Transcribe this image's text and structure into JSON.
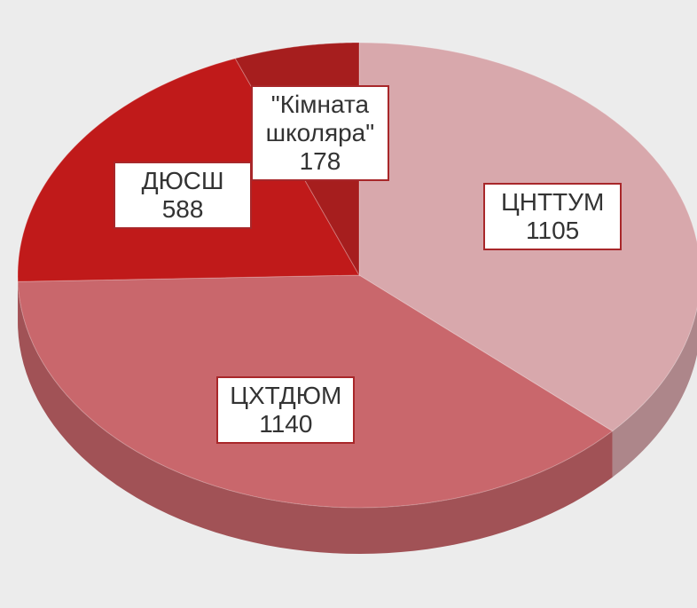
{
  "chart_data": {
    "type": "pie",
    "categories": [
      "ЦНТТУМ",
      "ЦХТДЮМ",
      "ДЮСШ",
      "\"Кімната школяра\""
    ],
    "values": [
      1105,
      1140,
      588,
      178
    ],
    "colors": [
      "#d8a8ac",
      "#c9676c",
      "#c01a1a",
      "#a61e1e"
    ]
  }
}
